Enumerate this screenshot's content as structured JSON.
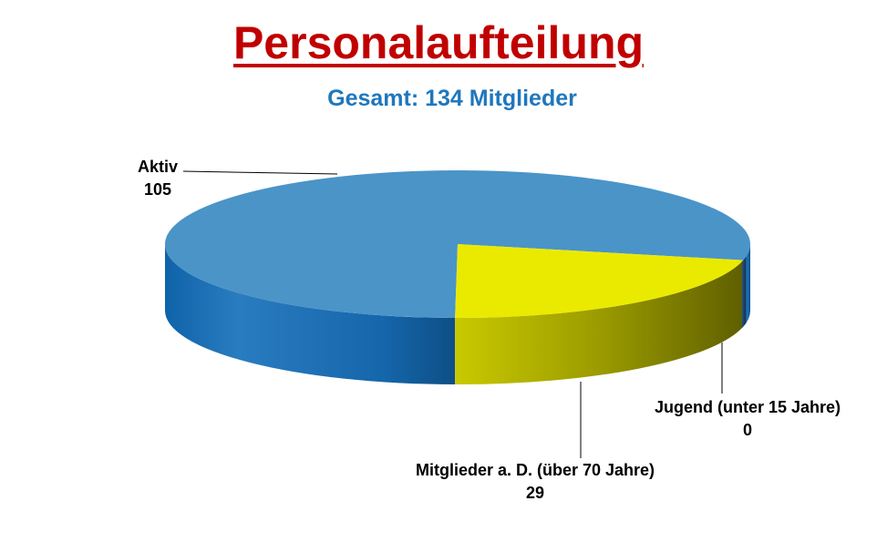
{
  "chart_data": {
    "type": "pie",
    "title": "Personalaufteilung",
    "subtitle": "Gesamt: 134 Mitglieder",
    "slices": [
      {
        "name": "Aktiv",
        "value": 105,
        "value_label": "105",
        "color": "#4a94c8",
        "side_color": "#1f6eb0"
      },
      {
        "name": "Mitglieder  a. D. (über 70 Jahre)",
        "value": 29,
        "value_label": "29",
        "color": "#eaea00",
        "side_color": "#a3a300"
      },
      {
        "name": "Jugend (unter 15 Jahre)",
        "value": 0,
        "value_label": "0",
        "color": "#1f3f66",
        "side_color": "#1f3f66"
      }
    ],
    "style": "3d-pie"
  }
}
